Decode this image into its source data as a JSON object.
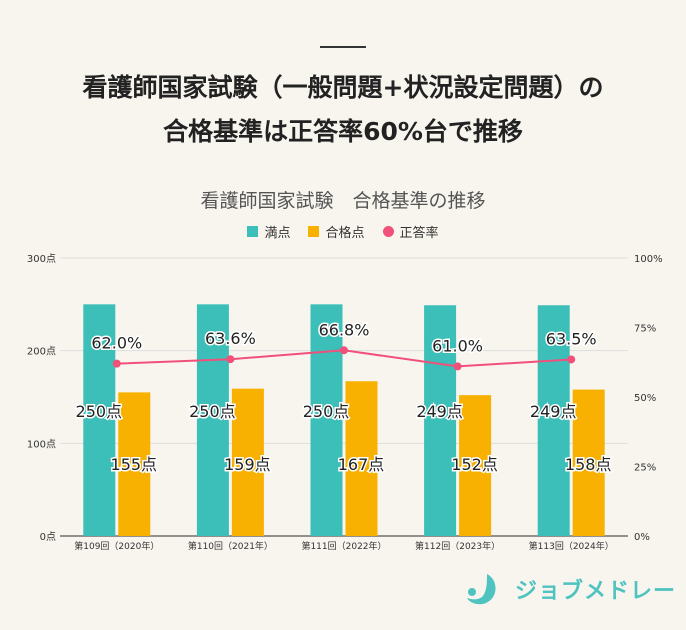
{
  "title_line1": "看護師国家試験（一般問題+状況設定問題）の",
  "title_line2": "合格基準は正答率60%台で推移",
  "chart_data": {
    "type": "bar",
    "title": "看護師国家試験　合格基準の推移",
    "categories": [
      "第109回（2020年）",
      "第110回（2021年）",
      "第111回（2022年）",
      "第112回（2023年）",
      "第113回（2024年）"
    ],
    "series": [
      {
        "name": "満点",
        "type": "bar",
        "axis": "left",
        "color": "#3cbfb8",
        "values": [
          250,
          250,
          250,
          249,
          249
        ],
        "labels": [
          "250点",
          "250点",
          "250点",
          "249点",
          "249点"
        ]
      },
      {
        "name": "合格点",
        "type": "bar",
        "axis": "left",
        "color": "#f8b100",
        "values": [
          155,
          159,
          167,
          152,
          158
        ],
        "labels": [
          "155点",
          "159点",
          "167点",
          "152点",
          "158点"
        ]
      },
      {
        "name": "正答率",
        "type": "line",
        "axis": "right",
        "color": "#f0507a",
        "values": [
          62.0,
          63.6,
          66.8,
          61.0,
          63.5
        ],
        "labels": [
          "62.0%",
          "63.6%",
          "66.8%",
          "61.0%",
          "63.5%"
        ]
      }
    ],
    "left_axis": {
      "range": [
        0,
        300
      ],
      "ticks": [
        "0点",
        "100点",
        "200点",
        "300点"
      ]
    },
    "right_axis": {
      "range": [
        0,
        100
      ],
      "ticks": [
        "0%",
        "25%",
        "50%",
        "75%",
        "100%"
      ]
    },
    "grid": true,
    "legend": "top"
  },
  "logo": {
    "text": "ジョブメドレー",
    "color": "#4ec3bf"
  }
}
